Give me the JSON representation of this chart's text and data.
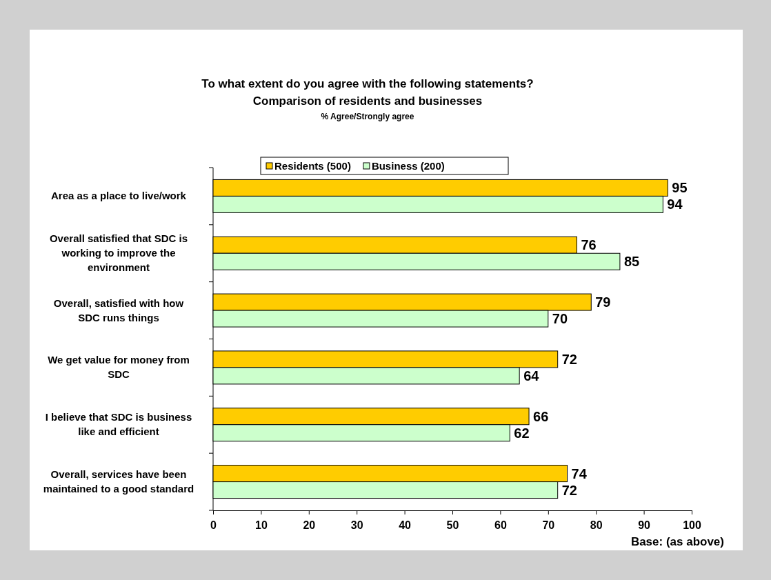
{
  "chart_data": {
    "type": "bar",
    "orientation": "horizontal",
    "title": "To what extent do you agree with the following statements?",
    "subtitle": "Comparison of residents and businesses",
    "annotations": [
      "% Agree/Strongly agree",
      "Base: (as above)"
    ],
    "categories": [
      "Area as a place to live/work",
      "Overall satisfied that SDC is working to improve the environment",
      "Overall, satisfied with how SDC runs things",
      "We get value for money from SDC",
      "I believe that SDC is business like and efficient",
      "Overall, services have been maintained to a good standard"
    ],
    "series": [
      {
        "name": "Residents (500)",
        "color": "#ffcc00",
        "values": [
          95,
          76,
          79,
          72,
          66,
          74
        ]
      },
      {
        "name": "Business (200)",
        "color": "#ccffcc",
        "values": [
          94,
          85,
          70,
          64,
          62,
          72
        ]
      }
    ],
    "xlim": [
      0,
      100
    ],
    "xticks": [
      0,
      10,
      20,
      30,
      40,
      50,
      60,
      70,
      80,
      90,
      100
    ],
    "data_labels": true,
    "legend": "top",
    "grid": false
  }
}
